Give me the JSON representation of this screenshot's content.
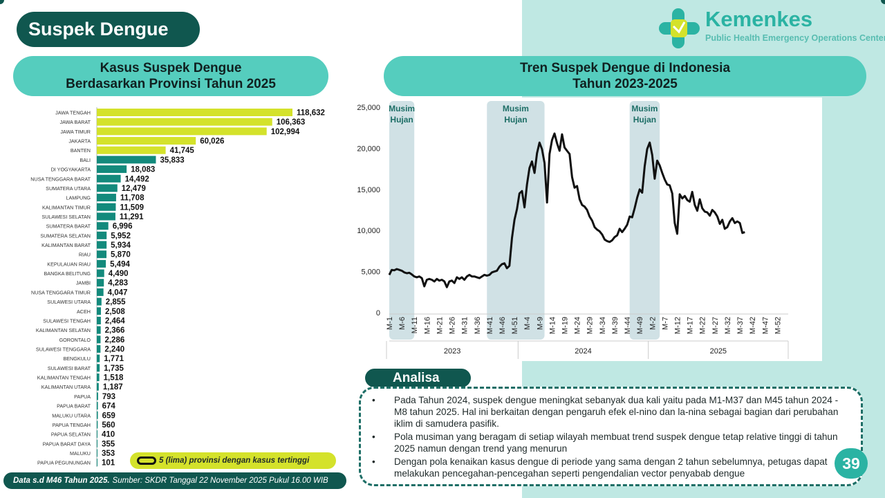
{
  "page_title": "Suspek Dengue",
  "logo": {
    "name": "Kemenkes",
    "subtitle": "Public Health Emergency Operations Center"
  },
  "colors": {
    "dark_teal": "#10574f",
    "teal_bar": "#138a7c",
    "lime_bar": "#d4e22b",
    "pill": "#55cdbe",
    "shade": "#d0e1e5"
  },
  "left_chart": {
    "title_line1": "Kasus Suspek Dengue",
    "title_line2": "Berdasarkan Provinsi Tahun 2025"
  },
  "right_chart": {
    "title_line1": "Tren Suspek Dengue di Indonesia",
    "title_line2": "Tahun 2023-2025"
  },
  "legend": {
    "text": "5 (lima) provinsi dengan kasus tertinggi"
  },
  "footer": {
    "bold": "Data s.d M46 Tahun 2025.",
    "rest": "Sumber: SKDR Tanggal 22 November 2025 Pukul 16.00 WIB"
  },
  "analisa": {
    "label": "Analisa",
    "bullets": [
      "Pada Tahun 2024, suspek dengue meningkat sebanyak dua kali yaitu pada M1-M37 dan M45 tahun 2024 - M8 tahun 2025. Hal ini berkaitan dengan pengaruh efek el-nino dan la-nina sebagai bagian dari perubahan iklim di samudera pasifik.",
      "Pola musiman yang beragam di setiap wilayah membuat trend suspek dengue tetap relative tinggi di tahun 2025 namun dengan trend yang menurun",
      "Dengan pola kenaikan kasus dengue di periode yang sama dengan 2 tahun sebelumnya, petugas dapat melakukan pencegahan-pencegahan seperti pengendalian vector penyabab dengue"
    ],
    "bullet_char": "•"
  },
  "page_number": "39",
  "chart_data": [
    {
      "type": "bar",
      "orientation": "horizontal",
      "categories": [
        "JAWA TENGAH",
        "JAWA BARAT",
        "JAWA TIMUR",
        "JAKARTA",
        "BANTEN",
        "BALI",
        "DI YOGYAKARTA",
        "NUSA TENGGARA BARAT",
        "SUMATERA UTARA",
        "LAMPUNG",
        "KALIMANTAN TIMUR",
        "SULAWESI SELATAN",
        "SUMATERA BARAT",
        "SUMATERA SELATAN",
        "KALIMANTAN BARAT",
        "RIAU",
        "KEPULAUAN RIAU",
        "BANGKA BELITUNG",
        "JAMBI",
        "NUSA TENGGARA TIMUR",
        "SULAWESI UTARA",
        "ACEH",
        "SULAWESI TENGAH",
        "KALIMANTAN SELATAN",
        "GORONTALO",
        "SULAWESI TENGGARA",
        "BENGKULU",
        "SULAWESI BARAT",
        "KALIMANTAN TENGAH",
        "KALIMANTAN UTARA",
        "PAPUA",
        "PAPUA BARAT",
        "MALUKU UTARA",
        "PAPUA TENGAH",
        "PAPUA SELATAN",
        "PAPUA BARAT DAYA",
        "MALUKU",
        "PAPUA PEGUNUNGAN"
      ],
      "values": [
        118632,
        106363,
        102994,
        60026,
        41745,
        35833,
        18083,
        14492,
        12479,
        11708,
        11509,
        11291,
        6996,
        5952,
        5934,
        5870,
        5494,
        4490,
        4283,
        4047,
        2855,
        2508,
        2464,
        2366,
        2286,
        2240,
        1771,
        1735,
        1518,
        1187,
        793,
        674,
        659,
        560,
        410,
        355,
        353,
        101
      ],
      "value_labels": [
        "118,632",
        "106,363",
        "102,994",
        "60,026",
        "41,745",
        "35,833",
        "18,083",
        "14,492",
        "12,479",
        "11,708",
        "11,509",
        "11,291",
        "6,996",
        "5,952",
        "5,934",
        "5,870",
        "5,494",
        "4,490",
        "4,283",
        "4,047",
        "2,855",
        "2,508",
        "2,464",
        "2,366",
        "2,286",
        "2,240",
        "1,771",
        "1,735",
        "1,518",
        "1,187",
        "793",
        "674",
        "659",
        "560",
        "410",
        "355",
        "353",
        "101"
      ],
      "highlight_top": 5
    },
    {
      "type": "line",
      "x_tick_labels": [
        "M-1",
        "M-6",
        "M-11",
        "M-16",
        "M-21",
        "M-26",
        "M-31",
        "M-36",
        "M-41",
        "M-46",
        "M-51",
        "M-4",
        "M-9",
        "M-14",
        "M-19",
        "M-24",
        "M-29",
        "M-34",
        "M-39",
        "M-44",
        "M-49",
        "M-2",
        "M-7",
        "M-12",
        "M-17",
        "M-22",
        "M-27",
        "M-32",
        "M-37",
        "M-42",
        "M-47",
        "M-52"
      ],
      "year_labels": [
        "2023",
        "2024",
        "2025"
      ],
      "y_ticks": [
        "0",
        "5,000",
        "10,000",
        "15,000",
        "20,000",
        "25,000"
      ],
      "ylim": [
        0,
        25000
      ],
      "shade_label": "Musim Hujan",
      "shaded_weeks": [
        [
          1,
          11
        ],
        [
          40,
          63
        ],
        [
          97,
          109
        ]
      ],
      "series": [
        {
          "values": [
            4600,
            5200,
            5150,
            5300,
            5200,
            5100,
            4900,
            4800,
            4850,
            4650,
            4400,
            4300,
            4400,
            4200,
            3200,
            4000,
            4100,
            4000,
            3800,
            4100,
            3900,
            4000,
            3800,
            3100,
            3800,
            3900,
            3600,
            4300,
            4100,
            4300,
            4000,
            4400,
            4600,
            4400,
            4400,
            4300,
            4200,
            4400,
            4600,
            4500,
            4600,
            4900,
            5000,
            5100,
            5600,
            5900,
            6000,
            5400,
            5700,
            9100,
            11300,
            12600,
            14500,
            14800,
            12800,
            15600,
            17600,
            18400,
            17000,
            19400,
            20700,
            19900,
            18200,
            13400,
            19300,
            21000,
            21800,
            20600,
            19700,
            21700,
            20100,
            19700,
            19300,
            16500,
            15200,
            15400,
            13800,
            13100,
            12900,
            12500,
            11700,
            11200,
            10400,
            10100,
            9900,
            9500,
            8900,
            8700,
            8600,
            8800,
            9200,
            9400,
            10200,
            9800,
            10200,
            10700,
            11700,
            11600,
            12700,
            14000,
            15000,
            14600,
            17800,
            19900,
            20700,
            19200,
            16300,
            18500,
            17900,
            17000,
            16200,
            15600,
            15500,
            14500,
            10900,
            9600,
            14400,
            13900,
            14200,
            13700,
            13500,
            14700,
            13100,
            12400,
            13800,
            12700,
            12300,
            12200,
            11800,
            12500,
            12200,
            11700,
            10800,
            11300,
            10200,
            10400,
            11100,
            11500,
            10900,
            11100,
            10900,
            9700,
            9800
          ]
        }
      ]
    }
  ]
}
